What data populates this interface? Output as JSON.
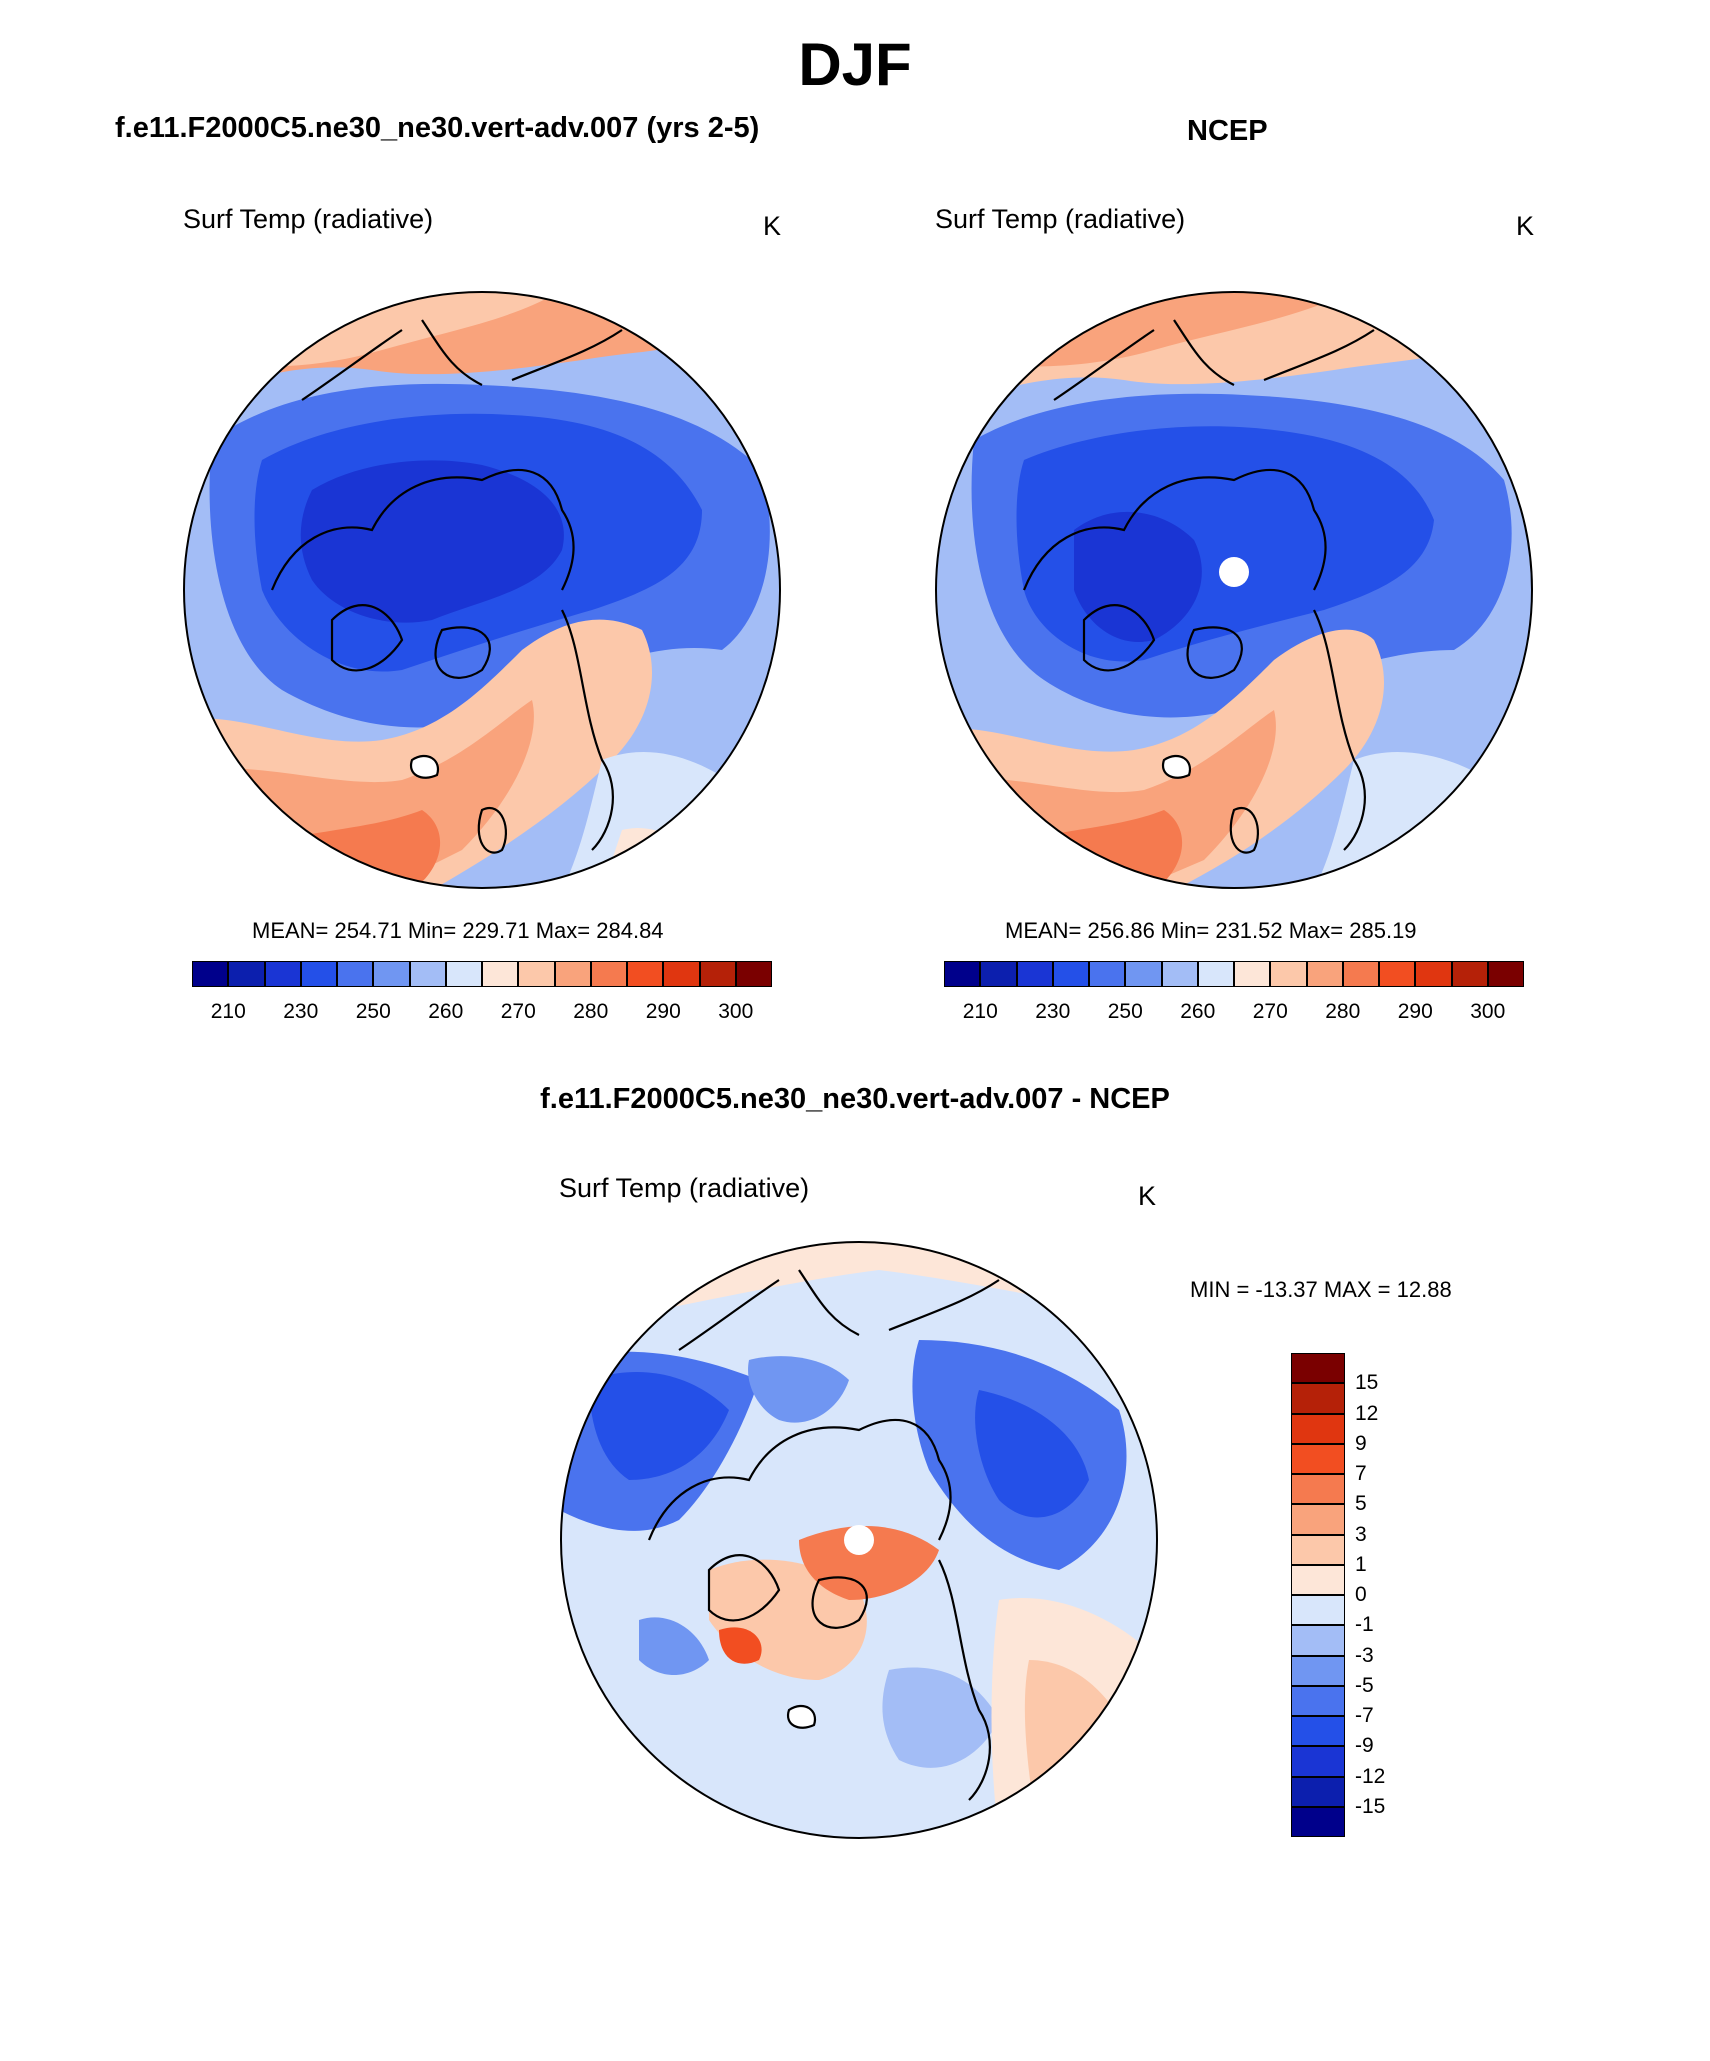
{
  "season": "DJF",
  "panels": [
    {
      "title": "f.e11.F2000C5.ne30_ne30.vert-adv.007 (yrs 2-5)",
      "variable": "Surf Temp (radiative)",
      "units": "K",
      "stats": "MEAN= 254.71  Min= 229.71  Max= 284.84"
    },
    {
      "title": "NCEP",
      "variable": "Surf Temp (radiative)",
      "units": "K",
      "stats": "MEAN= 256.86  Min= 231.52  Max= 285.19"
    },
    {
      "title": "f.e11.F2000C5.ne30_ne30.vert-adv.007 - NCEP",
      "variable": "Surf Temp (radiative)",
      "units": "K",
      "stats": "MIN = -13.37 MAX =  12.88"
    }
  ],
  "colorbar_abs": {
    "colors": [
      "#00008b",
      "#0c1fae",
      "#1a35d4",
      "#2450e8",
      "#4a73ee",
      "#7096f2",
      "#a3bdf6",
      "#d8e6fb",
      "#fde6d8",
      "#fcc8aa",
      "#f9a37c",
      "#f57a4f",
      "#f24e21",
      "#e03610",
      "#b52108",
      "#7a0000"
    ],
    "tick_labels": [
      "210",
      "230",
      "250",
      "260",
      "270",
      "280",
      "290",
      "300"
    ]
  },
  "colorbar_diff": {
    "colors": [
      "#00008b",
      "#0c1fae",
      "#1a35d4",
      "#2450e8",
      "#4a73ee",
      "#7096f2",
      "#a3bdf6",
      "#d8e6fb",
      "#fde6d8",
      "#fcc8aa",
      "#f9a37c",
      "#f57a4f",
      "#f24e21",
      "#e03610",
      "#b52108",
      "#7a0000"
    ],
    "tick_labels": [
      "-15",
      "-12",
      "-9",
      "-7",
      "-5",
      "-3",
      "-1",
      "0",
      "1",
      "3",
      "5",
      "7",
      "9",
      "12",
      "15"
    ]
  }
}
